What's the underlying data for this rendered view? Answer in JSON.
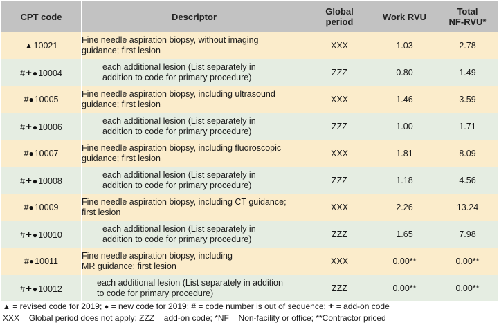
{
  "table": {
    "headers": {
      "code": "CPT code",
      "descriptor": "Descriptor",
      "global_line1": "Global",
      "global_line2": "period",
      "work_rvu": "Work RVU",
      "total_line1": "Total",
      "total_line2": "NF-RVU*"
    },
    "rows": [
      {
        "symbols": [
          "▲"
        ],
        "code": "10021",
        "desc_line1": "Fine needle aspiration biopsy, without imaging",
        "desc_line2": "guidance; first lesion",
        "global": "XXX",
        "work": "1.03",
        "total": "2.78"
      },
      {
        "symbols": [
          "#",
          "+",
          "●"
        ],
        "code": "10004",
        "desc_line1": "each additional lesion (List separately in",
        "desc_line2": "addition to code for primary procedure)",
        "global": "ZZZ",
        "work": "0.80",
        "total": "1.49"
      },
      {
        "symbols": [
          "#",
          "●"
        ],
        "code": "10005",
        "desc_line1": "Fine needle aspiration biopsy, including ultrasound",
        "desc_line2": "guidance; first lesion",
        "global": "XXX",
        "work": "1.46",
        "total": "3.59"
      },
      {
        "symbols": [
          "#",
          "+",
          "●"
        ],
        "code": "10006",
        "desc_line1": "each additional lesion (List separately in",
        "desc_line2": "addition to code for primary procedure)",
        "global": "ZZZ",
        "work": "1.00",
        "total": "1.71"
      },
      {
        "symbols": [
          "#",
          "●"
        ],
        "code": "10007",
        "desc_line1": "Fine needle aspiration biopsy, including fluoroscopic",
        "desc_line2": "guidance; first lesion",
        "global": "XXX",
        "work": "1.81",
        "total": "8.09"
      },
      {
        "symbols": [
          "#",
          "+",
          "●"
        ],
        "code": "10008",
        "desc_line1": "each additional lesion (List separately in",
        "desc_line2": "addition to code for primary procedure)",
        "global": "ZZZ",
        "work": "1.18",
        "total": "4.56"
      },
      {
        "symbols": [
          "#",
          "●"
        ],
        "code": "10009",
        "desc_line1": "Fine needle aspiration biopsy, including CT guidance;",
        "desc_line2": "first lesion",
        "global": "XXX",
        "work": "2.26",
        "total": "13.24"
      },
      {
        "symbols": [
          "#",
          "+",
          "●"
        ],
        "code": "10010",
        "desc_line1": "each additional lesion (List separately in",
        "desc_line2": "addition to code for primary procedure)",
        "global": "ZZZ",
        "work": "1.65",
        "total": "7.98"
      },
      {
        "symbols": [
          "#",
          "●"
        ],
        "code": "10011",
        "desc_line1": "Fine needle aspiration biopsy, including",
        "desc_line2": "MR guidance; first lesion",
        "global": "XXX",
        "work": "0.00**",
        "total": "0.00**"
      },
      {
        "symbols": [
          "#",
          "+",
          "●"
        ],
        "code": "10012",
        "desc_line1": "each additional lesion (List separately in addition",
        "desc_line2": "to code for primary procedure)",
        "global": "ZZZ",
        "work": "0.00**",
        "total": "0.00**"
      }
    ]
  },
  "legend": {
    "line1": {
      "tri": "▲",
      "tri_text": " = revised code for 2019; ",
      "dot": "●",
      "dot_text": " = new code for 2019; # = code number is out of sequence; ",
      "plus": "+",
      "plus_text": " = add-on code"
    },
    "line2": "XXX = Global period does not apply; ZZZ = add-on code; *NF = Non-facility or office; **Contractor priced"
  },
  "colors": {
    "header_bg": "#c2c2c2",
    "row_odd_bg": "#fbeccb",
    "row_even_bg": "#e5ede2"
  }
}
